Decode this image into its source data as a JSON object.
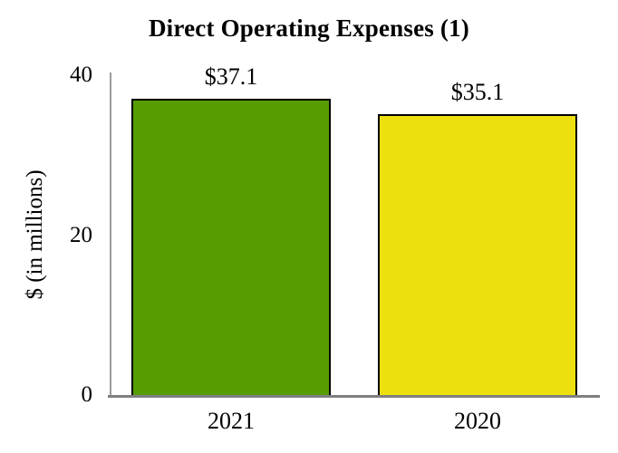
{
  "chart_data": {
    "type": "bar",
    "title": "Direct Operating Expenses (1)",
    "ylabel": "$ (in millions)",
    "xlabel": "",
    "categories": [
      "2021",
      "2020"
    ],
    "values": [
      37.1,
      35.1
    ],
    "value_labels": [
      "$37.1",
      "$35.1"
    ],
    "bar_colors": [
      "#579D02",
      "#EDE00E"
    ],
    "bar_border_color": "#000000",
    "yticks": [
      40,
      20,
      0
    ],
    "ylim": [
      0,
      40
    ],
    "grid": false,
    "legend": false,
    "axis_y_color": "#9B9B9B",
    "axis_x_color": "#7F7F7F",
    "background": "#FFFFFF"
  }
}
